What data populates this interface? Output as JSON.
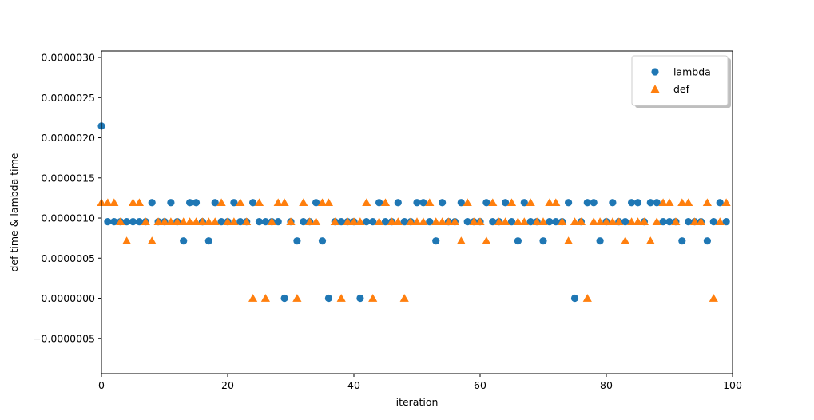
{
  "chart_data": {
    "type": "scatter",
    "title": "",
    "xlabel": "iteration",
    "ylabel": "def time & lambda time",
    "xlim": [
      0,
      100
    ],
    "ylim": [
      -9.4e-07,
      3.08e-06
    ],
    "grid": false,
    "legend_position": "upper right",
    "x_ticks": [
      0,
      20,
      40,
      60,
      80,
      100
    ],
    "x_tick_labels": [
      "0",
      "20",
      "40",
      "60",
      "80",
      "100"
    ],
    "y_ticks": [
      -5e-07,
      0.0,
      5e-07,
      1e-06,
      1.5e-06,
      2e-06,
      2.5e-06,
      3e-06
    ],
    "y_tick_labels": [
      "−0.0000005",
      "0.0000000",
      "0.0000005",
      "0.0000010",
      "0.0000015",
      "0.0000020",
      "0.0000025",
      "0.0000030"
    ],
    "y_unit_scale": 1e-06,
    "x": [
      0,
      1,
      2,
      3,
      4,
      5,
      6,
      7,
      8,
      9,
      10,
      11,
      12,
      13,
      14,
      15,
      16,
      17,
      18,
      19,
      20,
      21,
      22,
      23,
      24,
      25,
      26,
      27,
      28,
      29,
      30,
      31,
      32,
      33,
      34,
      35,
      36,
      37,
      38,
      39,
      40,
      41,
      42,
      43,
      44,
      45,
      46,
      47,
      48,
      49,
      50,
      51,
      52,
      53,
      54,
      55,
      56,
      57,
      58,
      59,
      60,
      61,
      62,
      63,
      64,
      65,
      66,
      67,
      68,
      69,
      70,
      71,
      72,
      73,
      74,
      75,
      76,
      77,
      78,
      79,
      80,
      81,
      82,
      83,
      84,
      85,
      86,
      87,
      88,
      89,
      90,
      91,
      92,
      93,
      94,
      95,
      96,
      97,
      98,
      99
    ],
    "series": [
      {
        "name": "lambda",
        "marker": "circle",
        "color": "#1f77b4",
        "values_micro": [
          2.146,
          0.954,
          0.954,
          0.954,
          0.954,
          0.954,
          0.954,
          0.954,
          1.192,
          0.954,
          0.954,
          1.192,
          0.954,
          0.715,
          1.192,
          1.192,
          0.954,
          0.715,
          1.192,
          0.954,
          0.954,
          1.192,
          0.954,
          0.954,
          1.192,
          0.954,
          0.954,
          0.954,
          0.954,
          0,
          0.954,
          0.715,
          0.954,
          0.954,
          1.192,
          0.715,
          0,
          0.954,
          0.954,
          0.954,
          0.954,
          0,
          0.954,
          0.954,
          1.192,
          0.954,
          0.954,
          1.192,
          0.954,
          0.954,
          1.192,
          1.192,
          0.954,
          0.715,
          1.192,
          0.954,
          0.954,
          1.192,
          0.954,
          0.954,
          0.954,
          1.192,
          0.954,
          0.954,
          1.192,
          0.954,
          0.715,
          1.192,
          0.954,
          0.954,
          0.715,
          0.954,
          0.954,
          0.954,
          1.192,
          0,
          0.954,
          1.192,
          1.192,
          0.715,
          0.954,
          1.192,
          0.954,
          0.954,
          1.192,
          1.192,
          0.954,
          1.192,
          1.192,
          0.954,
          0.954,
          0.954,
          0.715,
          0.954,
          0.954,
          0.954,
          0.715,
          0.954,
          1.192,
          0.954
        ]
      },
      {
        "name": "def",
        "marker": "triangle",
        "color": "#ff7f0e",
        "values_micro": [
          1.192,
          1.192,
          1.192,
          0.954,
          0.715,
          1.192,
          1.192,
          0.954,
          0.715,
          0.954,
          0.954,
          0.954,
          0.954,
          0.954,
          0.954,
          0.954,
          0.954,
          0.954,
          0.954,
          1.192,
          0.954,
          0.954,
          1.192,
          0.954,
          0,
          1.192,
          0,
          0.954,
          1.192,
          1.192,
          0.954,
          0,
          1.192,
          0.954,
          0.954,
          1.192,
          1.192,
          0.954,
          0,
          0.954,
          0.954,
          0.954,
          1.192,
          0,
          0.954,
          1.192,
          0.954,
          0.954,
          0,
          0.954,
          0.954,
          0.954,
          1.192,
          0.954,
          0.954,
          0.954,
          0.954,
          0.715,
          1.192,
          0.954,
          0.954,
          0.715,
          1.192,
          0.954,
          0.954,
          1.192,
          0.954,
          0.954,
          1.192,
          0.954,
          0.954,
          1.192,
          1.192,
          0.954,
          0.715,
          0.954,
          0.954,
          0,
          0.954,
          0.954,
          0.954,
          0.954,
          0.954,
          0.715,
          0.954,
          0.954,
          0.954,
          0.715,
          0.954,
          1.192,
          1.192,
          0.954,
          1.192,
          1.192,
          0.954,
          0.954,
          1.192,
          0,
          0.954,
          1.192
        ]
      }
    ]
  },
  "legend": {
    "items": [
      {
        "label": "lambda",
        "color": "#1f77b4",
        "marker": "circle"
      },
      {
        "label": "def",
        "color": "#ff7f0e",
        "marker": "triangle"
      }
    ]
  }
}
